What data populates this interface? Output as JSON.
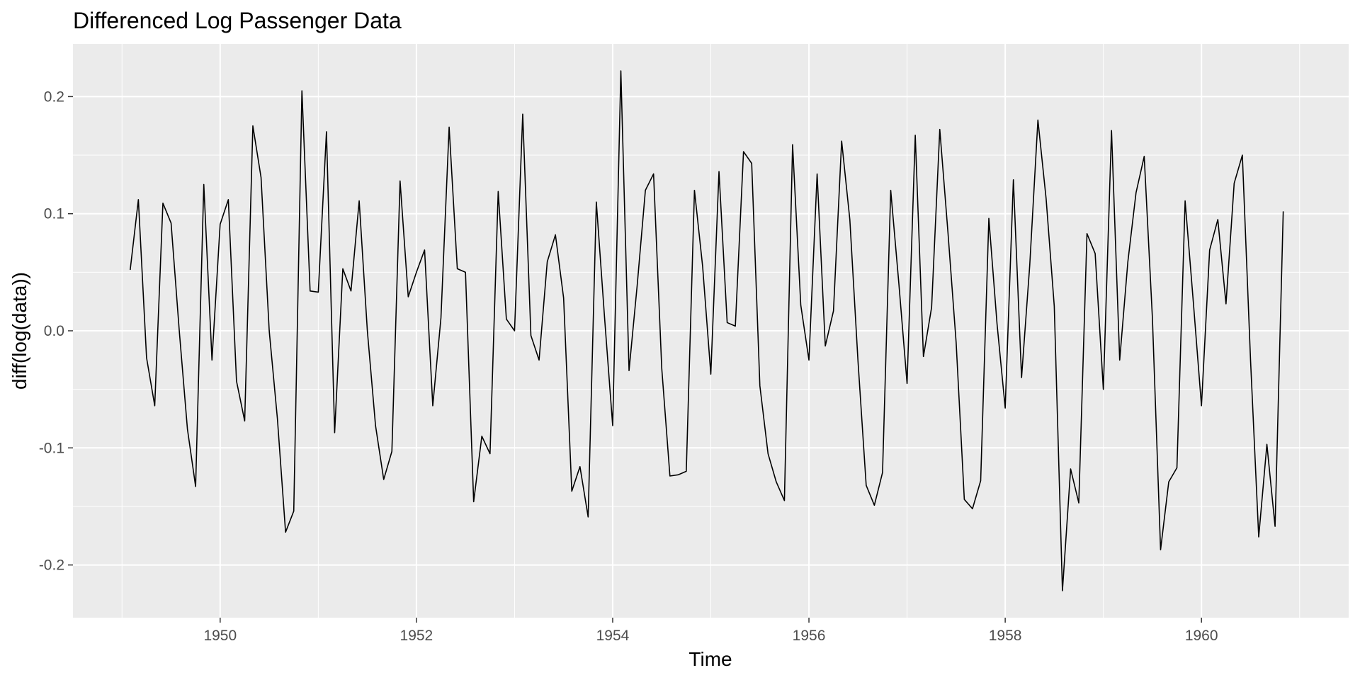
{
  "chart_data": {
    "type": "line",
    "title": "Differenced Log Passenger Data",
    "xlabel": "Time",
    "ylabel": "diff(log(data))",
    "x_start": 1949.0833,
    "x_step": 0.08333333,
    "xlim": [
      1948.5,
      1961.5
    ],
    "ylim": [
      -0.245,
      0.245
    ],
    "x_ticks": [
      1950,
      1952,
      1954,
      1956,
      1958,
      1960
    ],
    "x_tick_labels": [
      "1950",
      "1952",
      "1954",
      "1956",
      "1958",
      "1960"
    ],
    "y_ticks": [
      -0.2,
      -0.1,
      0.0,
      0.1,
      0.2
    ],
    "y_tick_labels": [
      "-0.2",
      "-0.1",
      "0.0",
      "0.1",
      "0.2"
    ],
    "grid": true,
    "background": "#ebebeb",
    "line_color": "#000000",
    "values": [
      0.052,
      0.112,
      -0.023,
      -0.064,
      0.109,
      0.092,
      0.0,
      -0.084,
      -0.133,
      0.125,
      -0.025,
      0.091,
      0.112,
      -0.043,
      -0.077,
      0.175,
      0.131,
      0.0,
      -0.075,
      -0.172,
      -0.154,
      0.205,
      0.034,
      0.033,
      0.17,
      -0.087,
      0.053,
      0.034,
      0.111,
      0.0,
      -0.081,
      -0.127,
      -0.103,
      0.128,
      0.029,
      0.05,
      0.069,
      -0.064,
      0.011,
      0.174,
      0.053,
      0.05,
      -0.146,
      -0.09,
      -0.105,
      0.119,
      0.01,
      0.0,
      0.185,
      -0.004,
      -0.025,
      0.059,
      0.082,
      0.028,
      -0.137,
      -0.116,
      -0.159,
      0.11,
      0.012,
      -0.081,
      0.222,
      -0.034,
      0.039,
      0.12,
      0.134,
      -0.032,
      -0.124,
      -0.123,
      -0.12,
      0.12,
      0.055,
      -0.037,
      0.136,
      0.007,
      0.004,
      0.153,
      0.143,
      -0.047,
      -0.105,
      -0.129,
      -0.145,
      0.159,
      0.022,
      -0.025,
      0.134,
      -0.013,
      0.017,
      0.162,
      0.095,
      -0.026,
      -0.132,
      -0.149,
      -0.121,
      0.12,
      0.04,
      -0.045,
      0.167,
      -0.022,
      0.02,
      0.172,
      0.084,
      -0.01,
      -0.144,
      -0.152,
      -0.128,
      0.096,
      0.006,
      -0.066,
      0.129,
      -0.04,
      0.056,
      0.18,
      0.113,
      0.021,
      -0.222,
      -0.118,
      -0.147,
      0.083,
      0.066,
      -0.05,
      0.171,
      -0.025,
      0.059,
      0.118,
      0.149,
      0.011,
      -0.187,
      -0.129,
      -0.117,
      0.111,
      0.025,
      -0.064,
      0.069,
      0.095,
      0.023,
      0.126,
      0.15,
      -0.025,
      -0.176,
      -0.097,
      -0.167,
      0.102
    ]
  }
}
